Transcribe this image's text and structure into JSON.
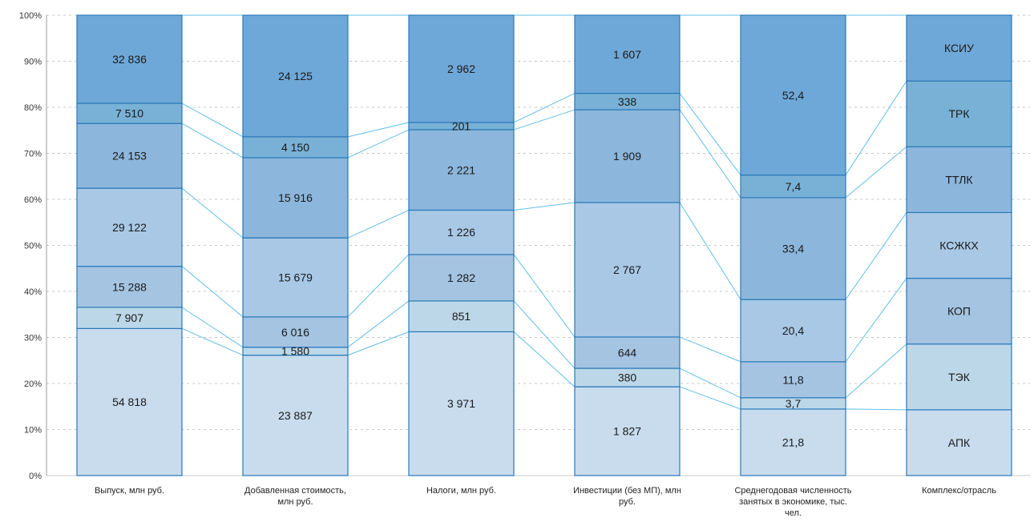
{
  "chart_data": {
    "type": "bar",
    "stacking": "percent",
    "y_ticks": [
      "0%",
      "10%",
      "20%",
      "30%",
      "40%",
      "50%",
      "60%",
      "70%",
      "80%",
      "90%",
      "100%"
    ],
    "ylim": [
      0,
      100
    ],
    "grid": "horizontal dashed",
    "categories": [
      [
        "Выпуск, млн руб."
      ],
      [
        "Добавленная  стоимость,",
        "млн руб."
      ],
      [
        "Налоги,  млн руб."
      ],
      [
        "Инвестиции  (без МП), млн",
        "руб."
      ],
      [
        "Среднегодовая  численность",
        "занятых в экономике, тыс.",
        "чел."
      ],
      [
        "Комплекс/отрасль"
      ]
    ],
    "series": [
      {
        "name": "АПК",
        "values": [
          54818,
          23887,
          3971,
          1827,
          21.8,
          1
        ],
        "labels": [
          "54 818",
          "23 887",
          "3 971",
          "1 827",
          "21,8",
          "АПК"
        ],
        "color": "#c8dcee"
      },
      {
        "name": "ТЭК",
        "values": [
          7907,
          1580,
          851,
          380,
          3.7,
          1
        ],
        "labels": [
          "7 907",
          "1 580",
          "851",
          "380",
          "3,7",
          "ТЭК"
        ],
        "color": "#bcd8e8"
      },
      {
        "name": "КОП",
        "values": [
          15288,
          6016,
          1282,
          644,
          11.8,
          1
        ],
        "labels": [
          "15 288",
          "6 016",
          "1 282",
          "644",
          "11,8",
          "КОП"
        ],
        "color": "#a4c4e2"
      },
      {
        "name": "КСЖКХ",
        "values": [
          29122,
          15679,
          1226,
          2767,
          20.4,
          1
        ],
        "labels": [
          "29 122",
          "15 679",
          "1 226",
          "2 767",
          "20,4",
          "КСЖКХ"
        ],
        "color": "#a8c8e6"
      },
      {
        "name": "ТТЛК",
        "values": [
          24153,
          15916,
          2221,
          1909,
          33.4,
          1
        ],
        "labels": [
          "24 153",
          "15 916",
          "2 221",
          "1 909",
          "33,4",
          "ТТЛК"
        ],
        "color": "#8cb6dc"
      },
      {
        "name": "ТРК",
        "values": [
          7510,
          4150,
          201,
          338,
          7.4,
          1
        ],
        "labels": [
          "7 510",
          "4 150",
          "201",
          "338",
          "7,4",
          "ТРК"
        ],
        "color": "#79b1d6"
      },
      {
        "name": "КСИУ",
        "values": [
          32836,
          24125,
          2962,
          1607,
          52.4,
          1
        ],
        "labels": [
          "32 836",
          "24 125",
          "2 962",
          "1 607",
          "52,4",
          "КСИУ"
        ],
        "color": "#6ea8d8"
      }
    ],
    "colors": {
      "outline": "#2a79b8",
      "connector": "#5fc0ea",
      "grid": "#c8c8c8",
      "axis": "#9a9a9a"
    }
  }
}
